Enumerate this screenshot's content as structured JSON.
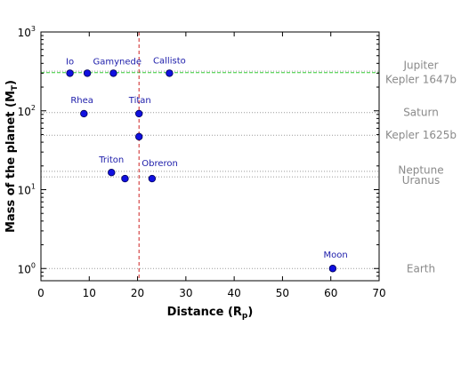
{
  "chart_data": {
    "type": "scatter",
    "xlabel": "Distance (R",
    "xlabel_sub": "p",
    "xlabel_end": ")",
    "ylabel": "Mass of the planet (M",
    "ylabel_sub": "T",
    "ylabel_end": ")",
    "xlim": [
      0,
      70
    ],
    "ylim": [
      0.7,
      1000
    ],
    "y_scale": "log",
    "grid": false,
    "x_ticks": [
      0,
      10,
      20,
      30,
      40,
      50,
      60,
      70
    ],
    "y_ticks": [
      {
        "value": 1,
        "base": "10",
        "exp": "0"
      },
      {
        "value": 10,
        "base": "10",
        "exp": "1"
      },
      {
        "value": 100,
        "base": "10",
        "exp": "2"
      },
      {
        "value": 1000,
        "base": "10",
        "exp": "3"
      }
    ],
    "marker_color": "#1010e0",
    "points": [
      {
        "x": 6.0,
        "y": 300,
        "label": "Io",
        "lx": 6.0,
        "ly": 390
      },
      {
        "x": 9.6,
        "y": 300,
        "label": "",
        "lx": 0,
        "ly": 0
      },
      {
        "x": 15.0,
        "y": 300,
        "label": "Gamynede",
        "lx": 15.8,
        "ly": 390
      },
      {
        "x": 26.6,
        "y": 300,
        "label": "Callisto",
        "lx": 26.6,
        "ly": 400
      },
      {
        "x": 8.9,
        "y": 92,
        "label": "Rhea",
        "lx": 8.5,
        "ly": 125
      },
      {
        "x": 20.3,
        "y": 92,
        "label": "Titan",
        "lx": 20.5,
        "ly": 126
      },
      {
        "x": 20.3,
        "y": 47,
        "label": "",
        "lx": 0,
        "ly": 0
      },
      {
        "x": 14.6,
        "y": 16.5,
        "label": "Triton",
        "lx": 14.6,
        "ly": 22
      },
      {
        "x": 17.4,
        "y": 13.8,
        "label": "",
        "lx": 0,
        "ly": 0
      },
      {
        "x": 23.0,
        "y": 13.8,
        "label": "Obreron",
        "lx": 24.6,
        "ly": 20
      },
      {
        "x": 60.4,
        "y": 1.0,
        "label": "Moon",
        "lx": 61.0,
        "ly": 1.38
      }
    ],
    "reference_lines": [
      {
        "name": "Jupiter",
        "y": 318,
        "style": "dotted-gray",
        "label_y": 380,
        "color": "#8a8a8a",
        "label_bold": false
      },
      {
        "name": "Kepler 1647b",
        "y": 305,
        "style": "dashed-green",
        "label_y": 248,
        "color": "#22dd22",
        "label_bold": false
      },
      {
        "name": "Saturn",
        "y": 95,
        "style": "dotted-gray",
        "label_y": 95,
        "color": "#8a8a8a",
        "label_bold": false
      },
      {
        "name": "Kepler 1625b",
        "y": 49,
        "style": "dotted-gray",
        "label_y": 49,
        "color": "#8a8a8a",
        "label_bold": false
      },
      {
        "name": "Neptune",
        "y": 17.1,
        "style": "dotted-gray",
        "label_y": 17.8,
        "color": "#8a8a8a",
        "label_bold": false
      },
      {
        "name": "Uranus",
        "y": 14.5,
        "style": "dotted-gray",
        "label_y": 13.2,
        "color": "#8a8a8a",
        "label_bold": false
      },
      {
        "name": "Earth",
        "y": 1.0,
        "style": "dotted-gray",
        "label_y": 1.0,
        "color": "#8a8a8a",
        "label_bold": false
      }
    ],
    "vertical_lines": [
      {
        "x": 20.3,
        "style": "dashed",
        "color": "#cc2222"
      }
    ]
  }
}
